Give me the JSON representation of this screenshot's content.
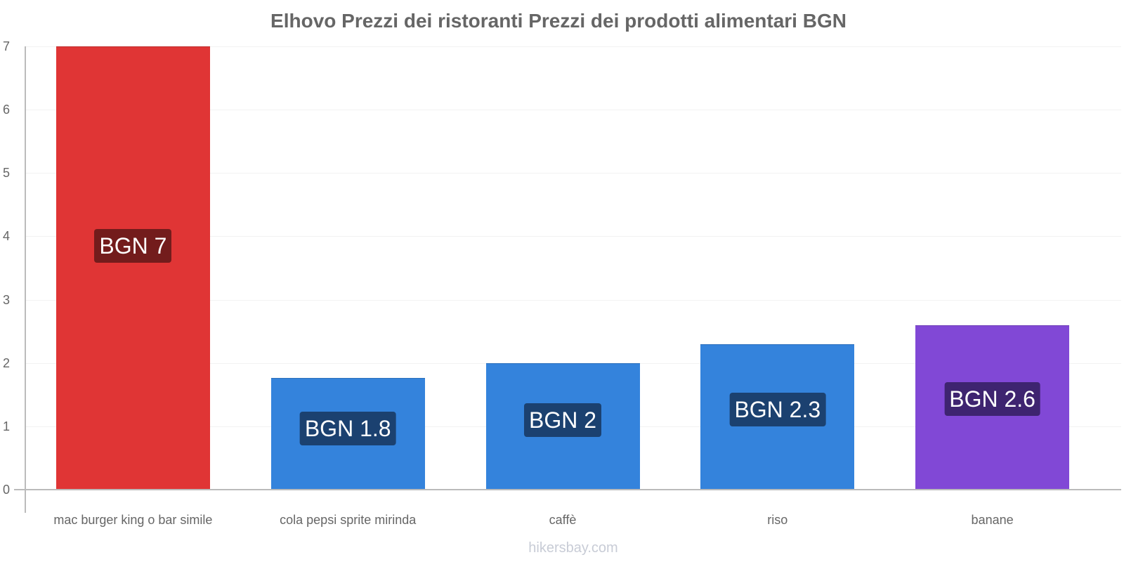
{
  "chart_data": {
    "type": "bar",
    "title": "Elhovo Prezzi dei ristoranti Prezzi dei prodotti alimentari BGN",
    "xlabel": "",
    "ylabel": "",
    "categories": [
      "mac burger king o bar simile",
      "cola pepsi sprite mirinda",
      "caffè",
      "riso",
      "banane"
    ],
    "values": [
      7,
      1.76,
      2.0,
      2.3,
      2.6
    ],
    "value_labels": [
      "BGN 7",
      "BGN 1.8",
      "BGN 2",
      "BGN 2.3",
      "BGN 2.6"
    ],
    "bar_colors": [
      "#e03535",
      "#3483dc",
      "#3483dc",
      "#3483dc",
      "#8148d6"
    ],
    "label_bg_colors": [
      "#731c1c",
      "#1b4170",
      "#1b4170",
      "#1b4170",
      "#3e2470"
    ],
    "ylim": [
      0,
      7
    ],
    "yticks": [
      0,
      1,
      2,
      3,
      4,
      5,
      6,
      7
    ],
    "grid": true,
    "legend": null,
    "watermark": "hikersbay.com"
  }
}
